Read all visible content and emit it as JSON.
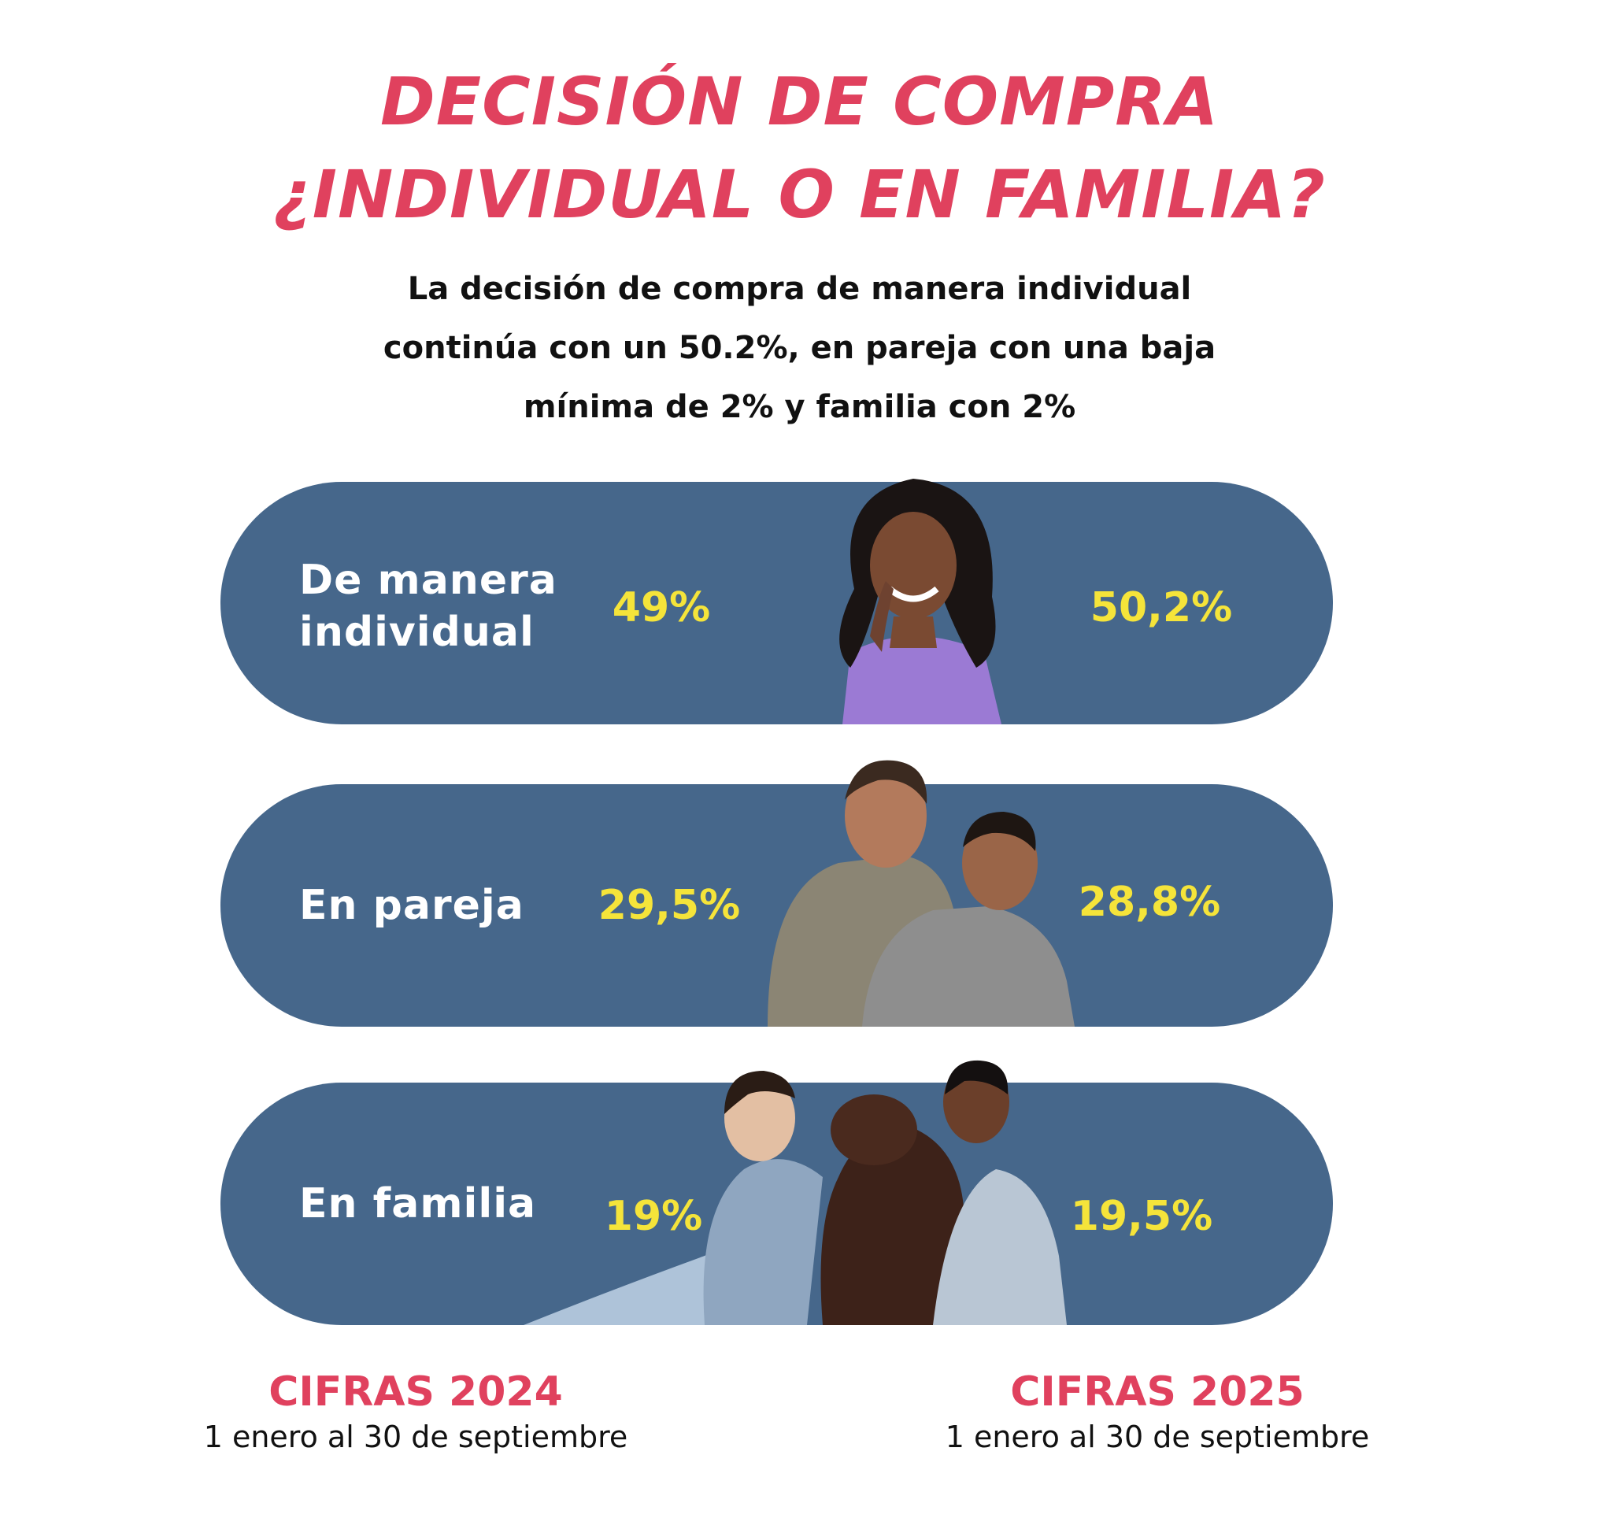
{
  "title": {
    "line1": "DECISIÓN DE COMPRA",
    "line2": "¿INDIVIDUAL O EN FAMILIA?"
  },
  "subtitle": {
    "line1": "La decisión de compra de manera individual",
    "line2": "continúa con un 50.2%, en pareja con una baja",
    "line3": "mínima de 2% y familia con 2%"
  },
  "colors": {
    "title": "#e0415e",
    "pill": "#46678b",
    "value": "#f5e43a",
    "category": "#ffffff"
  },
  "rows": [
    {
      "category": "De manera\nindividual",
      "value_2024": "49%",
      "value_2025": "50,2%",
      "photo": "smiling-woman-photo"
    },
    {
      "category": "En pareja",
      "value_2024": "29,5%",
      "value_2025": "28,8%",
      "photo": "couple-photo"
    },
    {
      "category": "En familia",
      "value_2024": "19%",
      "value_2025": "19,5%",
      "photo": "family-with-dog-photo"
    }
  ],
  "footer": {
    "left": {
      "label": "CIFRAS 2024",
      "period": "1 enero al 30 de septiembre"
    },
    "right": {
      "label": "CIFRAS 2025",
      "period": "1 enero al 30 de septiembre"
    }
  }
}
